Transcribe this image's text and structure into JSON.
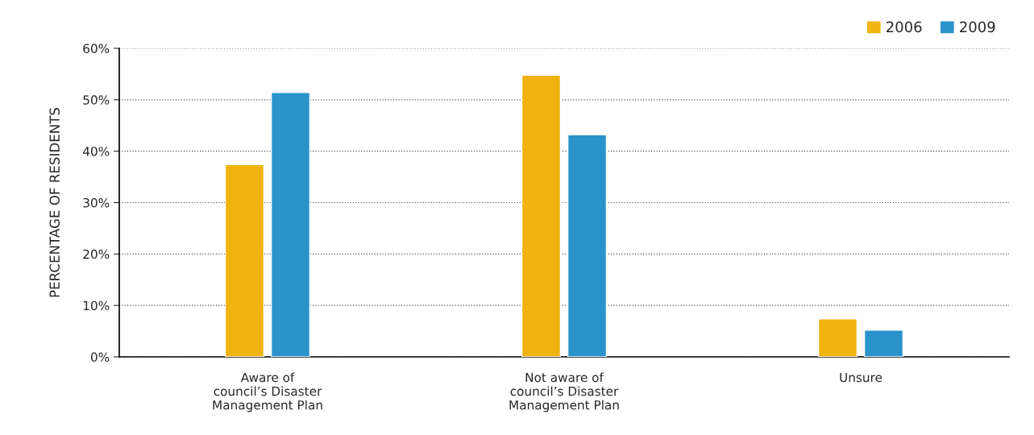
{
  "chart_data": {
    "type": "bar",
    "ylabel": "PERCENTAGE OF RESIDENTS",
    "categories": [
      "Aware of\ncouncil’s Disaster\nManagement Plan",
      "Not aware of\ncouncil’s Disaster\nManagement Plan",
      "Unsure"
    ],
    "series": [
      {
        "name": "2006",
        "color": "#f0b30f",
        "values": [
          37.4,
          54.8,
          7.4
        ]
      },
      {
        "name": "2009",
        "color": "#2a93cc",
        "values": [
          51.4,
          43.2,
          5.2
        ]
      }
    ],
    "ylim": [
      0,
      60
    ],
    "yticks": [
      {
        "value": 0,
        "label": "0%"
      },
      {
        "value": 10,
        "label": "10%"
      },
      {
        "value": 20,
        "label": "20%"
      },
      {
        "value": 30,
        "label": "30%"
      },
      {
        "value": 40,
        "label": "40%"
      },
      {
        "value": 50,
        "label": "50%"
      },
      {
        "value": 60,
        "label": "60%"
      }
    ],
    "grid": "y",
    "legend": "top right"
  }
}
